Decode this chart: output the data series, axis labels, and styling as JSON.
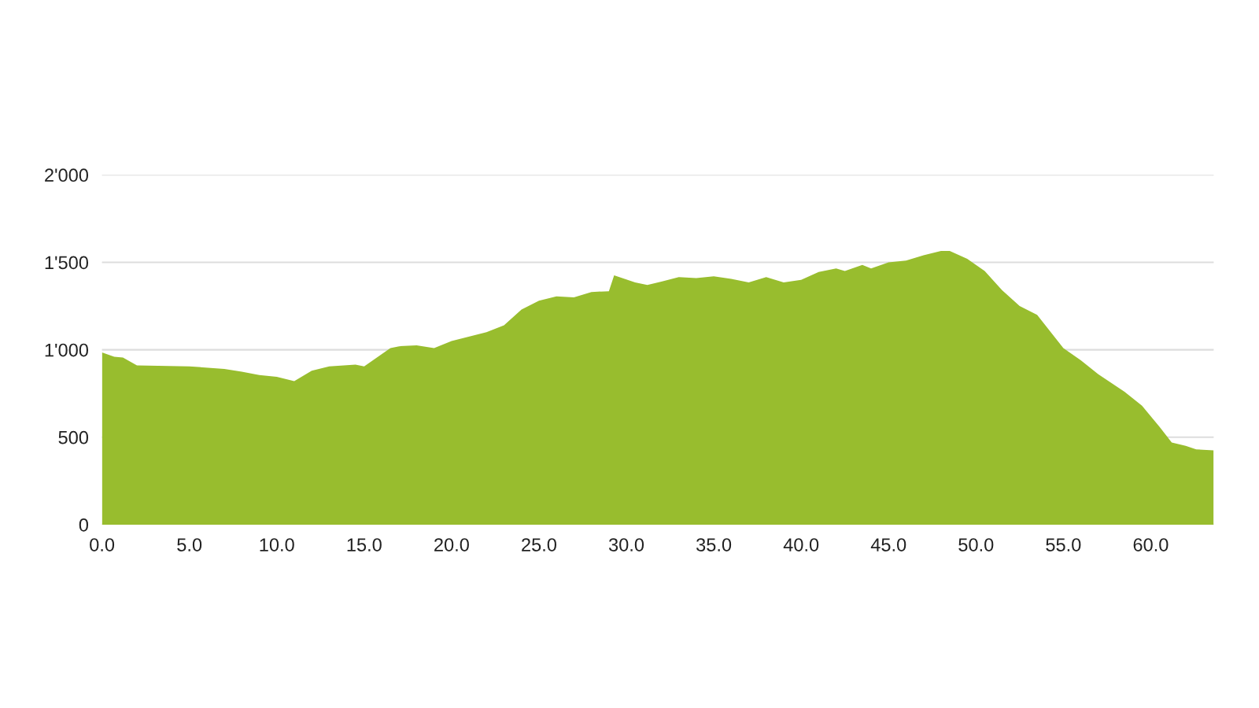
{
  "chart_data": {
    "type": "area",
    "x": [
      0,
      0.7,
      1.2,
      2,
      5,
      7,
      8,
      9,
      10,
      11,
      12,
      13,
      14.5,
      15,
      16.5,
      17,
      18,
      19,
      20,
      22,
      23,
      24,
      25,
      26,
      27,
      28,
      29,
      29.3,
      30.5,
      31.2,
      32,
      33,
      34,
      35,
      36,
      37,
      38,
      39,
      40,
      41,
      42,
      42.5,
      43.5,
      44,
      45,
      46,
      47,
      48,
      48.5,
      49.5,
      50.5,
      51.5,
      52.5,
      53.5,
      55,
      56,
      57,
      58.5,
      59.5,
      60.5,
      61.2,
      62,
      62.6,
      63.6
    ],
    "series": [
      {
        "color": "#98bd2e",
        "values": [
          985,
          960,
          955,
          910,
          905,
          890,
          875,
          855,
          845,
          820,
          880,
          905,
          915,
          905,
          1010,
          1020,
          1025,
          1010,
          1050,
          1100,
          1140,
          1230,
          1280,
          1305,
          1300,
          1330,
          1335,
          1425,
          1385,
          1370,
          1390,
          1415,
          1410,
          1420,
          1405,
          1385,
          1415,
          1385,
          1400,
          1445,
          1465,
          1450,
          1485,
          1465,
          1500,
          1510,
          1540,
          1565,
          1565,
          1520,
          1450,
          1340,
          1250,
          1200,
          1010,
          940,
          860,
          760,
          680,
          560,
          470,
          450,
          430,
          425
        ]
      }
    ],
    "xlim": [
      0,
      63.6
    ],
    "ylim": [
      0,
      2000
    ],
    "xticks": [
      {
        "value": 0,
        "label": "0.0"
      },
      {
        "value": 5,
        "label": "5.0"
      },
      {
        "value": 10,
        "label": "10.0"
      },
      {
        "value": 15,
        "label": "15.0"
      },
      {
        "value": 20,
        "label": "20.0"
      },
      {
        "value": 25,
        "label": "25.0"
      },
      {
        "value": 30,
        "label": "30.0"
      },
      {
        "value": 35,
        "label": "35.0"
      },
      {
        "value": 40,
        "label": "40.0"
      },
      {
        "value": 45,
        "label": "45.0"
      },
      {
        "value": 50,
        "label": "50.0"
      },
      {
        "value": 55,
        "label": "55.0"
      },
      {
        "value": 60,
        "label": "60.0"
      }
    ],
    "yticks": [
      0,
      500,
      {
        "value": 1000,
        "label": "1'000"
      },
      {
        "value": 1500,
        "label": "1'500"
      },
      {
        "value": 2000,
        "label": "2'000"
      }
    ],
    "grid": "y"
  }
}
